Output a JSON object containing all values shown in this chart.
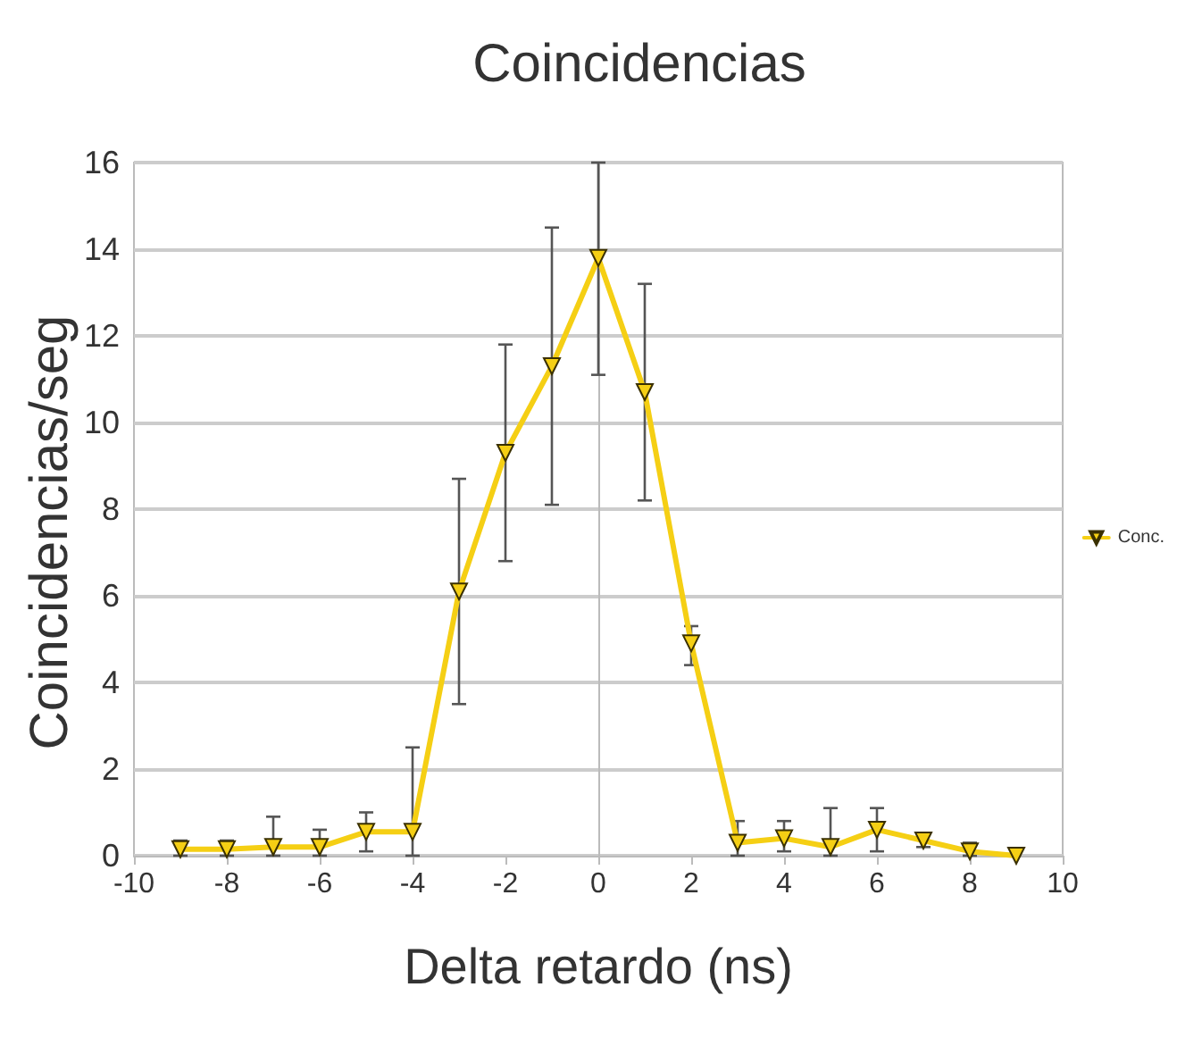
{
  "chart_data": {
    "type": "line",
    "title": "Coincidencias",
    "xlabel": "Delta retardo (ns)",
    "ylabel": "Coincidencias/seg",
    "x": [
      -9,
      -8,
      -7,
      -6,
      -5,
      -4,
      -3,
      -2,
      -1,
      0,
      1,
      2,
      3,
      4,
      5,
      6,
      7,
      8,
      9
    ],
    "series": [
      {
        "name": "Conc.",
        "color": "#f5cf14",
        "values": [
          0.15,
          0.15,
          0.2,
          0.2,
          0.55,
          0.55,
          6.1,
          9.3,
          11.3,
          13.8,
          10.7,
          4.9,
          0.3,
          0.4,
          0.2,
          0.6,
          0.35,
          0.1,
          0
        ],
        "errors": [
          [
            0,
            0.35
          ],
          [
            0,
            0.35
          ],
          [
            0,
            0.9
          ],
          [
            0,
            0.6
          ],
          [
            0.1,
            1.0
          ],
          [
            0,
            2.5
          ],
          [
            3.5,
            8.7
          ],
          [
            6.8,
            11.8
          ],
          [
            8.1,
            14.5
          ],
          [
            11.1,
            16
          ],
          [
            8.2,
            13.2
          ],
          [
            4.4,
            5.3
          ],
          [
            0,
            0.8
          ],
          [
            0.1,
            0.8
          ],
          [
            0,
            1.1
          ],
          [
            0.1,
            1.1
          ],
          [
            0.2,
            0.5
          ],
          [
            0,
            0.3
          ],
          null
        ]
      }
    ],
    "xlim": [
      -10,
      10
    ],
    "xticks": [
      -10,
      -8,
      -6,
      -4,
      -2,
      0,
      2,
      4,
      6,
      8,
      10
    ],
    "ylim": [
      0,
      16
    ],
    "yticks": [
      0,
      2,
      4,
      6,
      8,
      10,
      12,
      14,
      16
    ],
    "grid": "y",
    "legend": "right",
    "marker": "triangle",
    "line_style": "solid"
  }
}
